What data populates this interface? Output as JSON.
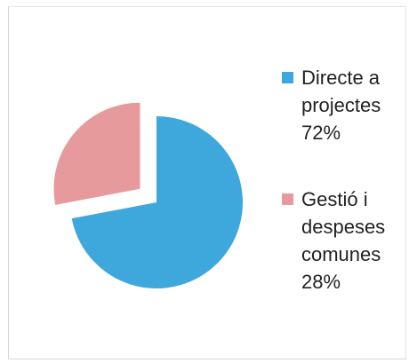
{
  "chart_data": {
    "type": "pie",
    "exploded_slice": 1,
    "slices": [
      {
        "label_lines": [
          "Directe a",
          "projectes",
          "72%"
        ],
        "value": 72,
        "color": "#3ea8dc"
      },
      {
        "label_lines": [
          "Gestió i",
          "despeses",
          "comunes",
          "28%"
        ],
        "value": 28,
        "color": "#e79a9b"
      }
    ],
    "legend_position": "right"
  }
}
